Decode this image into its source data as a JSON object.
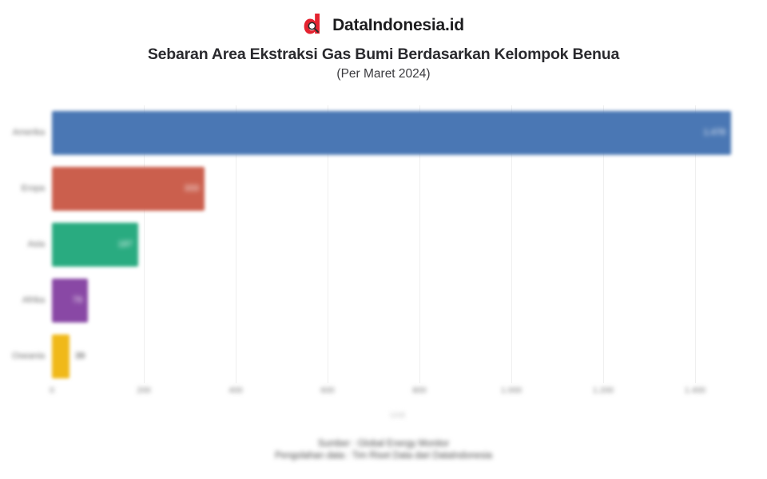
{
  "header": {
    "brand": "DataIndonesia.id",
    "title": "Sebaran Area Ekstraksi Gas Bumi Berdasarkan Kelompok Benua",
    "subtitle": "(Per Maret 2024)"
  },
  "chart_data": {
    "type": "bar",
    "orientation": "horizontal",
    "title": "Sebaran Area Ekstraksi Gas Bumi Berdasarkan Kelompok Benua (Per Maret 2024)",
    "categories": [
      "Amerika",
      "Eropa",
      "Asia",
      "Afrika",
      "Oseania"
    ],
    "values": [
      1478,
      333,
      187,
      79,
      39
    ],
    "value_labels": [
      "1.478",
      "333",
      "187",
      "79",
      "39"
    ],
    "bar_colors": [
      "#4a77b4",
      "#cb5f4d",
      "#29ab80",
      "#8948a5",
      "#f0b919"
    ],
    "xlabel": "Unit",
    "x_ticks": [
      "0",
      "200",
      "400",
      "600",
      "800",
      "1.000",
      "1.200",
      "1.400"
    ],
    "x_tick_values": [
      0,
      200,
      400,
      600,
      800,
      1000,
      1200,
      1400
    ],
    "xlim": [
      0,
      1500
    ],
    "grid": true,
    "legend": false
  },
  "colors": {
    "brand_red": "#e42330",
    "title_text": "#2a2a2e",
    "grid": "#efefef"
  },
  "footer": {
    "line1": "Sumber : Global Energy Monitor",
    "line2": "Pengolahan data : Tim Riset Data dari DataIndonesia"
  }
}
